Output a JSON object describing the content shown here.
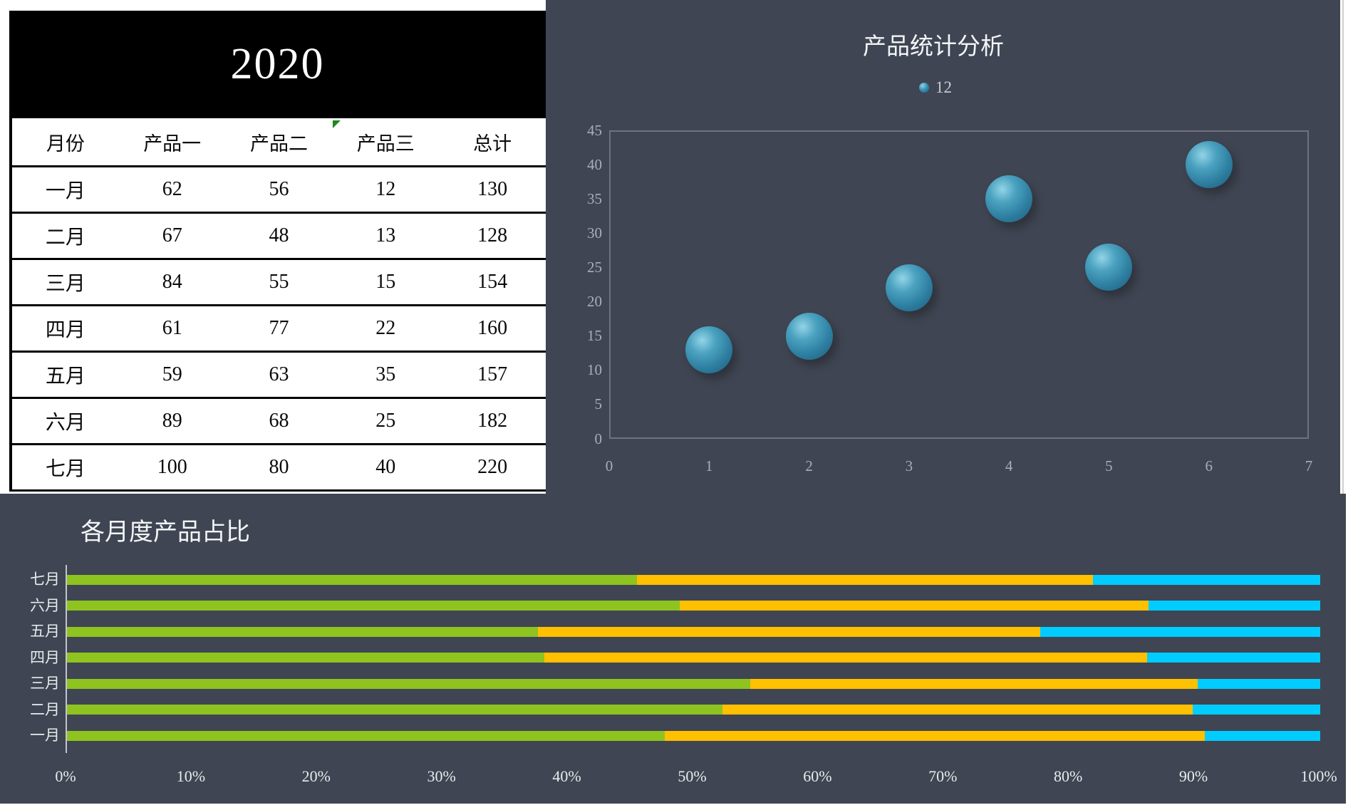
{
  "workbook": {
    "year_title": "2020",
    "table": {
      "columns": [
        "月份",
        "产品一",
        "产品二",
        "产品三",
        "总计"
      ],
      "rows": [
        [
          "一月",
          "62",
          "56",
          "12",
          "130"
        ],
        [
          "二月",
          "67",
          "48",
          "13",
          "128"
        ],
        [
          "三月",
          "84",
          "55",
          "15",
          "154"
        ],
        [
          "四月",
          "61",
          "77",
          "22",
          "160"
        ],
        [
          "五月",
          "59",
          "63",
          "35",
          "157"
        ],
        [
          "六月",
          "89",
          "68",
          "25",
          "182"
        ],
        [
          "七月",
          "100",
          "80",
          "40",
          "220"
        ]
      ]
    }
  },
  "bubble_chart": {
    "title": "产品统计分析",
    "legend_label": "12",
    "ytick_labels": [
      "45",
      "40",
      "35",
      "30",
      "25",
      "20",
      "15",
      "10",
      "5",
      "0"
    ],
    "xtick_labels": [
      "0",
      "1",
      "2",
      "3",
      "4",
      "5",
      "6",
      "7"
    ]
  },
  "bar_chart": {
    "title": "各月度产品占比",
    "xtick_labels": [
      "0%",
      "10%",
      "20%",
      "30%",
      "40%",
      "50%",
      "60%",
      "70%",
      "80%",
      "90%",
      "100%"
    ]
  },
  "colors": {
    "panel_background": "#3f4552",
    "bubble_fill": "#3a92b4",
    "series_product1_green": "#8fc31f",
    "series_product2_yellow": "#ffc000",
    "series_product3_cyan": "#00ccff"
  },
  "chart_data": [
    {
      "type": "scatter",
      "subtype": "bubble",
      "title": "产品统计分析",
      "legend": [
        "12"
      ],
      "legend_position": "top",
      "grid": false,
      "x": [
        1,
        2,
        3,
        4,
        5,
        6
      ],
      "series": [
        {
          "name": "12",
          "values": [
            13,
            15,
            22,
            35,
            25,
            40
          ]
        }
      ],
      "xlim": [
        0,
        7
      ],
      "ylim": [
        0,
        45
      ],
      "ytick_step": 5
    },
    {
      "type": "bar",
      "subtype": "stacked-100-horizontal",
      "title": "各月度产品占比",
      "categories_top_to_bottom": [
        "七月",
        "六月",
        "五月",
        "四月",
        "三月",
        "二月",
        "一月"
      ],
      "series": [
        {
          "name": "产品一",
          "color": "#8fc31f",
          "pct_top_to_bottom": [
            45.5,
            48.9,
            37.6,
            38.1,
            54.5,
            52.3,
            47.7
          ]
        },
        {
          "name": "产品二",
          "color": "#ffc000",
          "pct_top_to_bottom": [
            36.4,
            37.4,
            40.1,
            48.1,
            35.7,
            37.5,
            43.1
          ]
        },
        {
          "name": "产品三",
          "color": "#00ccff",
          "pct_top_to_bottom": [
            18.2,
            13.7,
            22.3,
            13.8,
            9.7,
            10.2,
            9.2
          ]
        }
      ],
      "xlim": [
        0,
        100
      ],
      "xtick_step": 10,
      "xlabel": "",
      "ylabel": ""
    }
  ]
}
